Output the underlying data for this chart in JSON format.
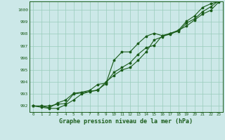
{
  "title": "Graphe pression niveau de la mer (hPa)",
  "bg_color": "#cce8e8",
  "grid_color": "#99ccbb",
  "line_color": "#1a5c1a",
  "xlim": [
    -0.5,
    23.5
  ],
  "ylim": [
    991.5,
    1000.7
  ],
  "yticks": [
    992,
    993,
    994,
    995,
    996,
    997,
    998,
    999,
    1000
  ],
  "xticks": [
    0,
    1,
    2,
    3,
    4,
    5,
    6,
    7,
    8,
    9,
    10,
    11,
    12,
    13,
    14,
    15,
    16,
    17,
    18,
    19,
    20,
    21,
    22,
    23
  ],
  "series1": [
    992.0,
    991.9,
    991.8,
    991.8,
    992.1,
    992.5,
    993.0,
    993.2,
    993.35,
    993.85,
    995.8,
    996.5,
    996.5,
    997.2,
    997.8,
    998.05,
    997.85,
    997.95,
    998.3,
    999.05,
    999.5,
    1000.2,
    1000.5,
    1000.7
  ],
  "series2": [
    992.0,
    992.0,
    992.0,
    992.15,
    992.2,
    993.0,
    993.1,
    993.2,
    993.3,
    994.0,
    994.55,
    995.0,
    995.2,
    995.8,
    996.5,
    997.5,
    997.75,
    998.05,
    998.3,
    998.65,
    999.15,
    999.65,
    999.95,
    1000.65
  ],
  "series3": [
    992.0,
    992.0,
    991.85,
    992.25,
    992.5,
    993.05,
    993.15,
    993.3,
    993.8,
    993.9,
    994.8,
    995.2,
    995.6,
    996.3,
    996.85,
    997.05,
    997.85,
    998.05,
    998.2,
    998.9,
    999.25,
    999.85,
    1000.25,
    1000.75
  ]
}
